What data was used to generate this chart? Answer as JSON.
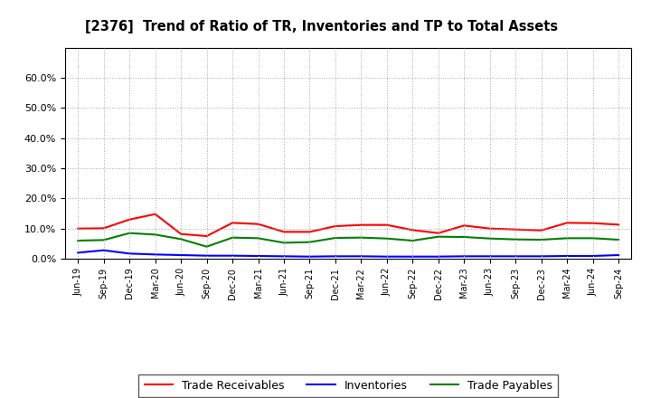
{
  "title": "[2376]  Trend of Ratio of TR, Inventories and TP to Total Assets",
  "x_labels": [
    "Jun-19",
    "Sep-19",
    "Dec-19",
    "Mar-20",
    "Jun-20",
    "Sep-20",
    "Dec-20",
    "Mar-21",
    "Jun-21",
    "Sep-21",
    "Dec-21",
    "Mar-22",
    "Jun-22",
    "Sep-22",
    "Dec-22",
    "Mar-23",
    "Jun-23",
    "Sep-23",
    "Dec-23",
    "Mar-24",
    "Jun-24",
    "Sep-24"
  ],
  "trade_receivables": [
    0.1,
    0.101,
    0.13,
    0.148,
    0.082,
    0.075,
    0.119,
    0.115,
    0.089,
    0.089,
    0.108,
    0.112,
    0.112,
    0.095,
    0.085,
    0.11,
    0.1,
    0.097,
    0.094,
    0.119,
    0.118,
    0.113
  ],
  "inventories": [
    0.02,
    0.028,
    0.017,
    0.014,
    0.012,
    0.01,
    0.01,
    0.009,
    0.008,
    0.007,
    0.008,
    0.008,
    0.007,
    0.007,
    0.007,
    0.008,
    0.008,
    0.008,
    0.008,
    0.009,
    0.009,
    0.012
  ],
  "trade_payables": [
    0.06,
    0.062,
    0.085,
    0.08,
    0.065,
    0.04,
    0.07,
    0.068,
    0.053,
    0.055,
    0.069,
    0.07,
    0.067,
    0.06,
    0.073,
    0.072,
    0.067,
    0.064,
    0.063,
    0.068,
    0.068,
    0.063
  ],
  "color_tr": "#FF0000",
  "color_inv": "#0000FF",
  "color_tp": "#008000",
  "ylim": [
    0.0,
    0.7
  ],
  "yticks": [
    0.0,
    0.1,
    0.2,
    0.3,
    0.4,
    0.5,
    0.6
  ],
  "ytick_labels": [
    "0.0%",
    "10.0%",
    "20.0%",
    "30.0%",
    "40.0%",
    "50.0%",
    "60.0%"
  ],
  "background_color": "#FFFFFF",
  "plot_bg_color": "#FFFFFF",
  "grid_color": "#AAAAAA",
  "legend_labels": [
    "Trade Receivables",
    "Inventories",
    "Trade Payables"
  ]
}
